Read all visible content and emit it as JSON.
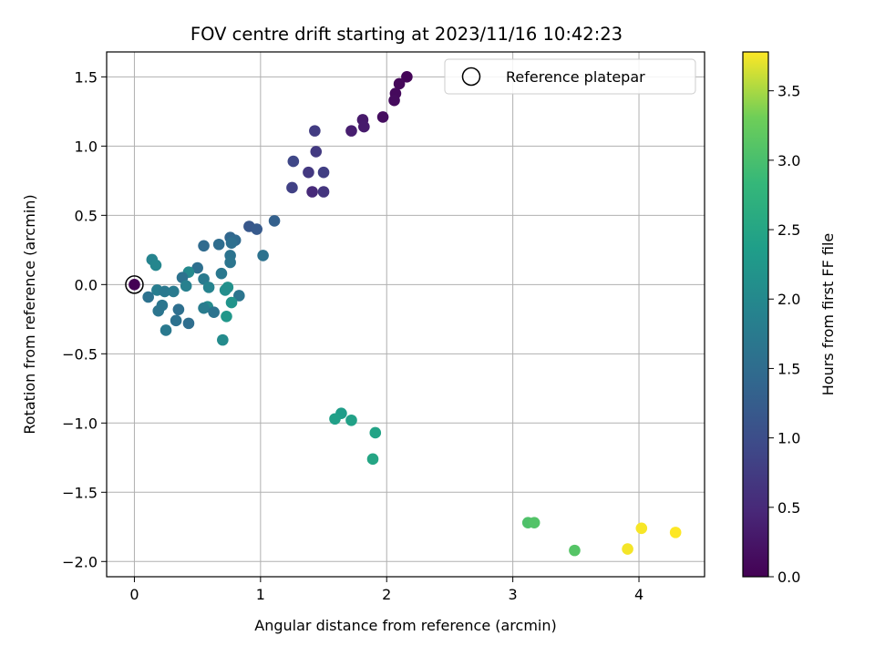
{
  "chart_data": {
    "type": "scatter",
    "title": "FOV centre drift starting at 2023/11/16 10:42:23",
    "xlabel": "Angular distance from reference (arcmin)",
    "ylabel": "Rotation from reference (arcmin)",
    "xlim": [
      -0.22,
      4.52
    ],
    "ylim": [
      -2.11,
      1.68
    ],
    "xticks": [
      0,
      1,
      2,
      3,
      4
    ],
    "yticks": [
      -2.0,
      -1.5,
      -1.0,
      -0.5,
      0.0,
      0.5,
      1.0,
      1.5
    ],
    "xtick_labels": [
      "0",
      "1",
      "2",
      "3",
      "4"
    ],
    "ytick_labels": [
      "−2.0",
      "−1.5",
      "−1.0",
      "−0.5",
      "0.0",
      "0.5",
      "1.0",
      "1.5"
    ],
    "grid": true,
    "legend": {
      "position": "top-right",
      "entries": [
        "Reference platepar"
      ]
    },
    "reference_point": {
      "x": 0.0,
      "y": 0.0
    },
    "colorbar": {
      "label": "Hours from first FF file",
      "colormap": "viridis",
      "range": [
        0.0,
        3.78
      ],
      "ticks": [
        0.0,
        0.5,
        1.0,
        1.5,
        2.0,
        2.5,
        3.0,
        3.5
      ],
      "tick_labels": [
        "0.0",
        "0.5",
        "1.0",
        "1.5",
        "2.0",
        "2.5",
        "3.0",
        "3.5"
      ]
    },
    "points": [
      {
        "x": 0.0,
        "y": 0.0,
        "c": 0.0
      },
      {
        "x": 2.16,
        "y": 1.5,
        "c": 0.05
      },
      {
        "x": 2.1,
        "y": 1.45,
        "c": 0.08
      },
      {
        "x": 2.07,
        "y": 1.38,
        "c": 0.1
      },
      {
        "x": 2.06,
        "y": 1.33,
        "c": 0.12
      },
      {
        "x": 1.97,
        "y": 1.21,
        "c": 0.15
      },
      {
        "x": 1.81,
        "y": 1.19,
        "c": 0.3
      },
      {
        "x": 1.82,
        "y": 1.14,
        "c": 0.32
      },
      {
        "x": 1.72,
        "y": 1.11,
        "c": 0.35
      },
      {
        "x": 1.43,
        "y": 1.11,
        "c": 0.75
      },
      {
        "x": 1.44,
        "y": 0.96,
        "c": 0.72
      },
      {
        "x": 1.26,
        "y": 0.89,
        "c": 0.9
      },
      {
        "x": 1.38,
        "y": 0.81,
        "c": 0.7
      },
      {
        "x": 1.5,
        "y": 0.81,
        "c": 0.78
      },
      {
        "x": 1.25,
        "y": 0.7,
        "c": 0.82
      },
      {
        "x": 1.41,
        "y": 0.67,
        "c": 0.5
      },
      {
        "x": 1.5,
        "y": 0.67,
        "c": 0.65
      },
      {
        "x": 1.11,
        "y": 0.46,
        "c": 1.3
      },
      {
        "x": 0.91,
        "y": 0.42,
        "c": 1.15
      },
      {
        "x": 0.97,
        "y": 0.4,
        "c": 1.2
      },
      {
        "x": 0.76,
        "y": 0.34,
        "c": 1.4
      },
      {
        "x": 0.8,
        "y": 0.32,
        "c": 1.45
      },
      {
        "x": 0.77,
        "y": 0.3,
        "c": 1.55
      },
      {
        "x": 0.67,
        "y": 0.29,
        "c": 1.5
      },
      {
        "x": 0.55,
        "y": 0.28,
        "c": 1.48
      },
      {
        "x": 1.02,
        "y": 0.21,
        "c": 1.6
      },
      {
        "x": 0.76,
        "y": 0.21,
        "c": 1.62
      },
      {
        "x": 0.76,
        "y": 0.16,
        "c": 1.65
      },
      {
        "x": 0.14,
        "y": 0.18,
        "c": 1.9
      },
      {
        "x": 0.17,
        "y": 0.14,
        "c": 1.95
      },
      {
        "x": 0.5,
        "y": 0.12,
        "c": 1.55
      },
      {
        "x": 0.69,
        "y": 0.08,
        "c": 1.7
      },
      {
        "x": 0.43,
        "y": 0.09,
        "c": 2.0
      },
      {
        "x": 0.38,
        "y": 0.05,
        "c": 1.6
      },
      {
        "x": 0.55,
        "y": 0.04,
        "c": 1.75
      },
      {
        "x": 0.41,
        "y": -0.01,
        "c": 1.85
      },
      {
        "x": 0.59,
        "y": -0.02,
        "c": 1.9
      },
      {
        "x": 0.74,
        "y": -0.02,
        "c": 2.15
      },
      {
        "x": 0.18,
        "y": -0.04,
        "c": 1.8
      },
      {
        "x": 0.24,
        "y": -0.05,
        "c": 1.7
      },
      {
        "x": 0.31,
        "y": -0.05,
        "c": 1.75
      },
      {
        "x": 0.72,
        "y": -0.04,
        "c": 2.1
      },
      {
        "x": 0.83,
        "y": -0.08,
        "c": 1.65
      },
      {
        "x": 0.11,
        "y": -0.09,
        "c": 1.6
      },
      {
        "x": 0.77,
        "y": -0.13,
        "c": 2.2
      },
      {
        "x": 0.22,
        "y": -0.15,
        "c": 1.68
      },
      {
        "x": 0.58,
        "y": -0.16,
        "c": 2.05
      },
      {
        "x": 0.55,
        "y": -0.17,
        "c": 1.78
      },
      {
        "x": 0.35,
        "y": -0.18,
        "c": 1.55
      },
      {
        "x": 0.19,
        "y": -0.19,
        "c": 1.65
      },
      {
        "x": 0.63,
        "y": -0.2,
        "c": 1.62
      },
      {
        "x": 0.73,
        "y": -0.23,
        "c": 2.25
      },
      {
        "x": 0.33,
        "y": -0.26,
        "c": 1.58
      },
      {
        "x": 0.43,
        "y": -0.28,
        "c": 1.52
      },
      {
        "x": 0.25,
        "y": -0.33,
        "c": 1.72
      },
      {
        "x": 0.7,
        "y": -0.4,
        "c": 2.05
      },
      {
        "x": 1.64,
        "y": -0.93,
        "c": 2.35
      },
      {
        "x": 1.59,
        "y": -0.97,
        "c": 2.4
      },
      {
        "x": 1.72,
        "y": -0.98,
        "c": 2.42
      },
      {
        "x": 1.91,
        "y": -1.07,
        "c": 2.45
      },
      {
        "x": 1.89,
        "y": -1.26,
        "c": 2.5
      },
      {
        "x": 3.12,
        "y": -1.72,
        "c": 3.05
      },
      {
        "x": 3.17,
        "y": -1.72,
        "c": 3.08
      },
      {
        "x": 3.49,
        "y": -1.92,
        "c": 3.1
      },
      {
        "x": 3.91,
        "y": -1.91,
        "c": 3.75
      },
      {
        "x": 4.02,
        "y": -1.76,
        "c": 3.76
      },
      {
        "x": 4.29,
        "y": -1.79,
        "c": 3.78
      }
    ]
  }
}
